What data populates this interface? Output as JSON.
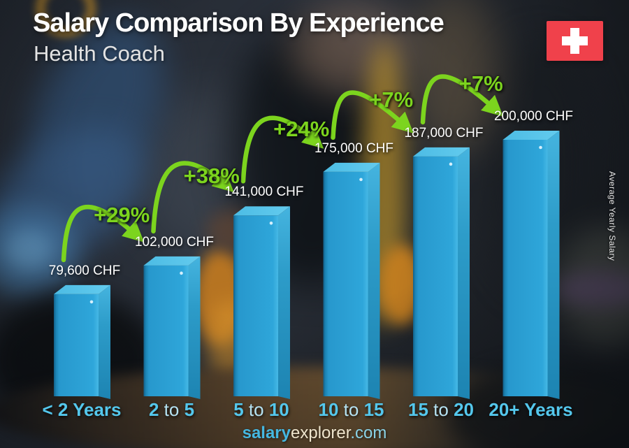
{
  "header": {
    "title": "Salary Comparison By Experience",
    "subtitle": "Health Coach"
  },
  "flag": {
    "country": "Switzerland"
  },
  "side_axis_label": "Average Yearly Salary",
  "footer": {
    "brand_bold": "salary",
    "brand_regular": "explorer",
    "brand_suffix": ".com"
  },
  "chart_data": {
    "type": "bar",
    "title": "Salary Comparison By Experience",
    "subtitle": "Health Coach",
    "categories": [
      "< 2 Years",
      "2 to 5",
      "5 to 10",
      "10 to 15",
      "15 to 20",
      "20+ Years"
    ],
    "values": [
      79600,
      102000,
      141000,
      175000,
      187000,
      200000
    ],
    "value_labels": [
      "79,600 CHF",
      "102,000 CHF",
      "141,000 CHF",
      "175,000 CHF",
      "187,000 CHF",
      "200,000 CHF"
    ],
    "pct_changes": [
      "+29%",
      "+38%",
      "+24%",
      "+7%",
      "+7%"
    ],
    "pct_values": [
      29,
      38,
      24,
      7,
      7
    ],
    "currency": "CHF",
    "ylabel": "Average Yearly Salary",
    "ylim": [
      0,
      200000
    ],
    "grid": false,
    "legend": false,
    "colors": {
      "bar_front": "#2b9fd3",
      "bar_top": "#55c1e6",
      "bar_side": "#1f87b8",
      "accent_green": "#7cd41e",
      "category_cyan": "#54c7ec",
      "value_text": "#ffffff"
    }
  }
}
